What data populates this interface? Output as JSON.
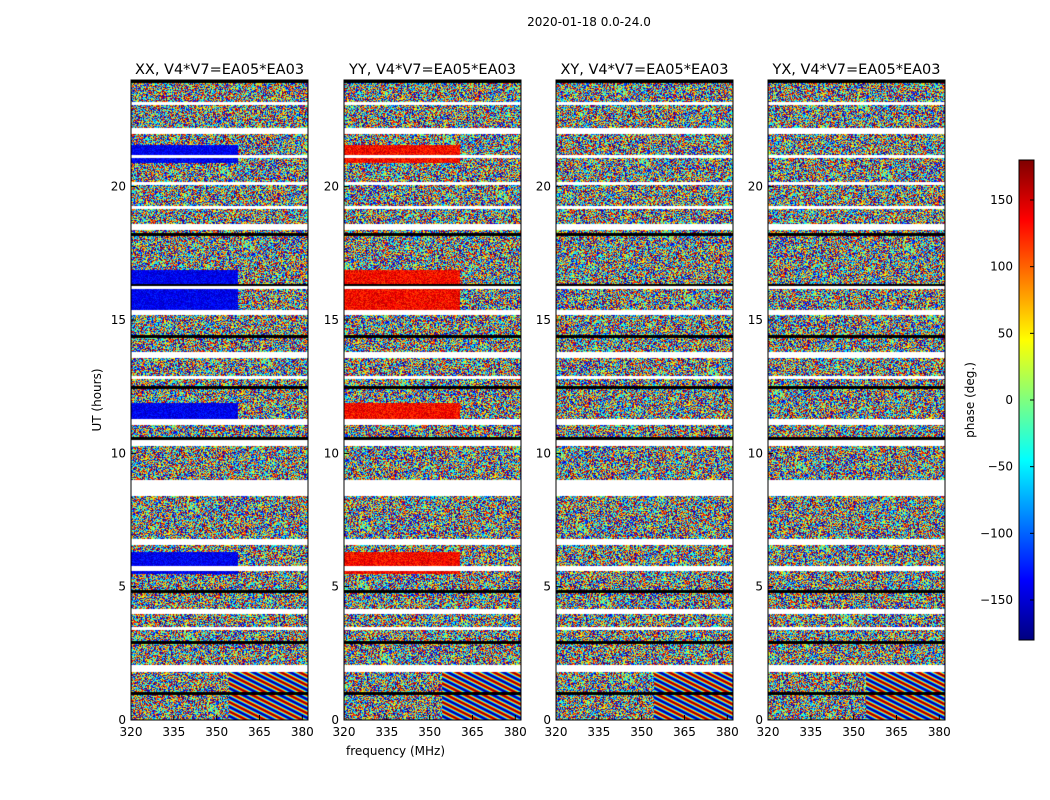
{
  "figure": {
    "title": "2020-01-18 0.0-24.0"
  },
  "chart_data": [
    {
      "type": "heatmap",
      "title": "XX, V4*V7=EA05*EA03",
      "xlabel": "",
      "ylabel": "UT (hours)",
      "xlim": [
        320,
        382
      ],
      "ylim": [
        0,
        24
      ],
      "x_ticks": [
        320,
        335,
        350,
        365,
        380
      ],
      "y_ticks": [
        0,
        5,
        10,
        15,
        20
      ],
      "colormap": "jet",
      "value_range": [
        -180,
        180
      ],
      "pattern": "noise_with_blue_bands"
    },
    {
      "type": "heatmap",
      "title": "YY, V4*V7=EA05*EA03",
      "xlabel": "frequency (MHz)",
      "ylabel": "",
      "xlim": [
        320,
        382
      ],
      "ylim": [
        0,
        24
      ],
      "x_ticks": [
        320,
        335,
        350,
        365,
        380
      ],
      "y_ticks": [
        0,
        5,
        10,
        15,
        20
      ],
      "colormap": "jet",
      "value_range": [
        -180,
        180
      ],
      "pattern": "noise_with_red_bands"
    },
    {
      "type": "heatmap",
      "title": "XY, V4*V7=EA05*EA03",
      "xlabel": "",
      "ylabel": "",
      "xlim": [
        320,
        382
      ],
      "ylim": [
        0,
        24
      ],
      "x_ticks": [
        320,
        335,
        350,
        365,
        380
      ],
      "y_ticks": [
        0,
        5,
        10,
        15,
        20
      ],
      "colormap": "jet",
      "value_range": [
        -180,
        180
      ],
      "pattern": "noise"
    },
    {
      "type": "heatmap",
      "title": "YX, V4*V7=EA05*EA03",
      "xlabel": "",
      "ylabel": "",
      "xlim": [
        320,
        382
      ],
      "ylim": [
        0,
        24
      ],
      "x_ticks": [
        320,
        335,
        350,
        365,
        380
      ],
      "y_ticks": [
        0,
        5,
        10,
        15,
        20
      ],
      "colormap": "jet",
      "value_range": [
        -180,
        180
      ],
      "pattern": "noise"
    }
  ],
  "colorbar": {
    "label": "phase (deg.)",
    "range": [
      -180,
      180
    ],
    "ticks": [
      150,
      100,
      50,
      0,
      -50,
      -100,
      -150
    ],
    "tick_labels": [
      "150",
      "100",
      "50",
      "0",
      "−50",
      "−100",
      "−150"
    ],
    "colors": [
      "#00007f",
      "#0000ff",
      "#007fff",
      "#00ffff",
      "#7fff7f",
      "#ffff00",
      "#ff7f00",
      "#ff0000",
      "#7f0000"
    ]
  },
  "flagged_bands_hours": [
    [
      1.8,
      2.1
    ],
    [
      3.4,
      3.5
    ],
    [
      4.0,
      4.2
    ],
    [
      5.6,
      5.8
    ],
    [
      6.6,
      6.8
    ],
    [
      8.4,
      9.0
    ],
    [
      10.3,
      10.5
    ],
    [
      11.1,
      11.3
    ],
    [
      12.8,
      12.9
    ],
    [
      13.6,
      13.8
    ],
    [
      15.2,
      15.4
    ],
    [
      16.2,
      16.3
    ],
    [
      18.4,
      18.6
    ],
    [
      19.2,
      19.3
    ],
    [
      20.1,
      20.2
    ],
    [
      21.1,
      21.2
    ],
    [
      22.0,
      22.2
    ],
    [
      23.1,
      23.2
    ]
  ]
}
